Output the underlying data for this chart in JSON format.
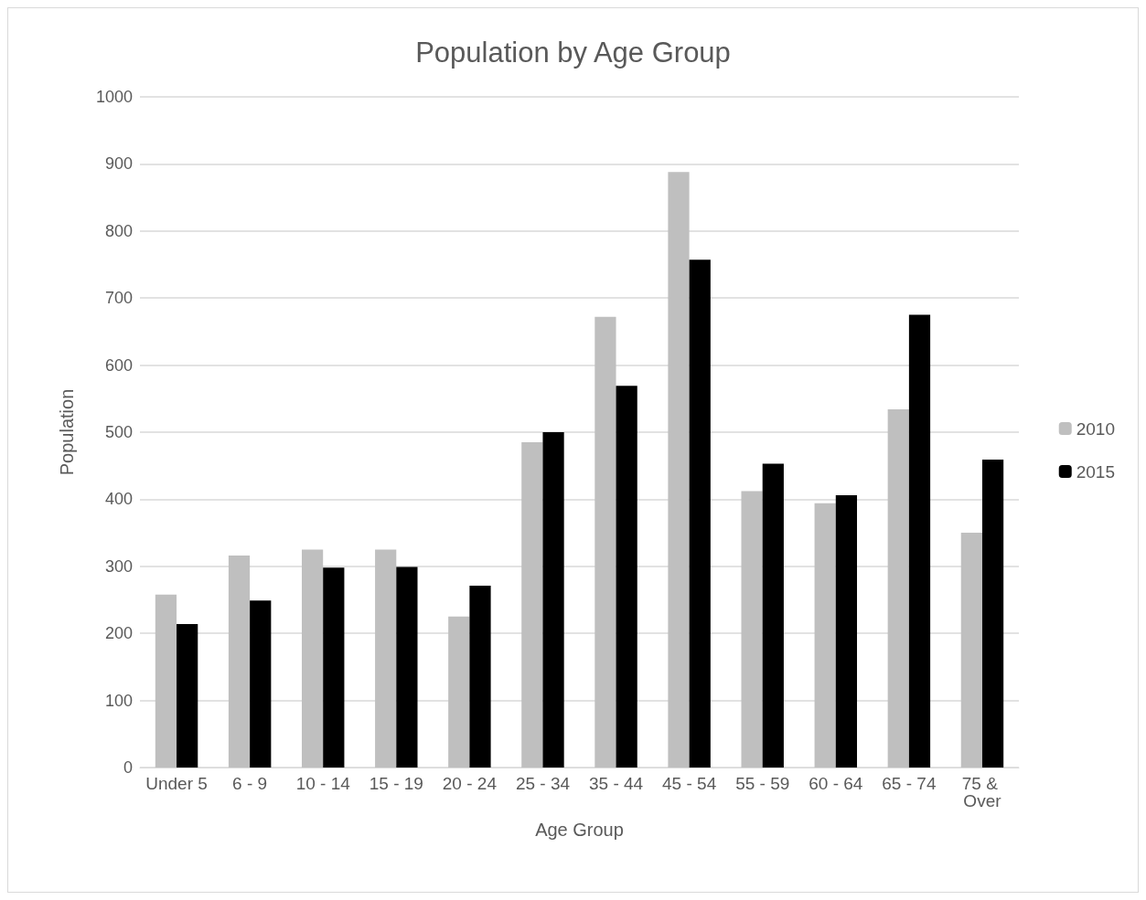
{
  "chart_data": {
    "type": "bar",
    "title": "Population by Age Group",
    "xlabel": "Age Group",
    "ylabel": "Population",
    "categories": [
      "Under 5",
      "6 - 9",
      "10 - 14",
      "15 - 19",
      "20 - 24",
      "25 - 34",
      "35 - 44",
      "45 - 54",
      "55 - 59",
      "60 - 64",
      "65 - 74",
      "75 & Over"
    ],
    "series": [
      {
        "name": "2010",
        "color": "#bfbfbf",
        "values": [
          258,
          316,
          325,
          325,
          225,
          485,
          672,
          888,
          412,
          394,
          534,
          350
        ]
      },
      {
        "name": "2015",
        "color": "#000000",
        "values": [
          214,
          249,
          298,
          299,
          271,
          500,
          569,
          757,
          453,
          406,
          675,
          459
        ]
      }
    ],
    "ylim": [
      0,
      1000
    ],
    "yticks": [
      0,
      100,
      200,
      300,
      400,
      500,
      600,
      700,
      800,
      900,
      1000
    ],
    "grid": "y",
    "legend": "right"
  }
}
